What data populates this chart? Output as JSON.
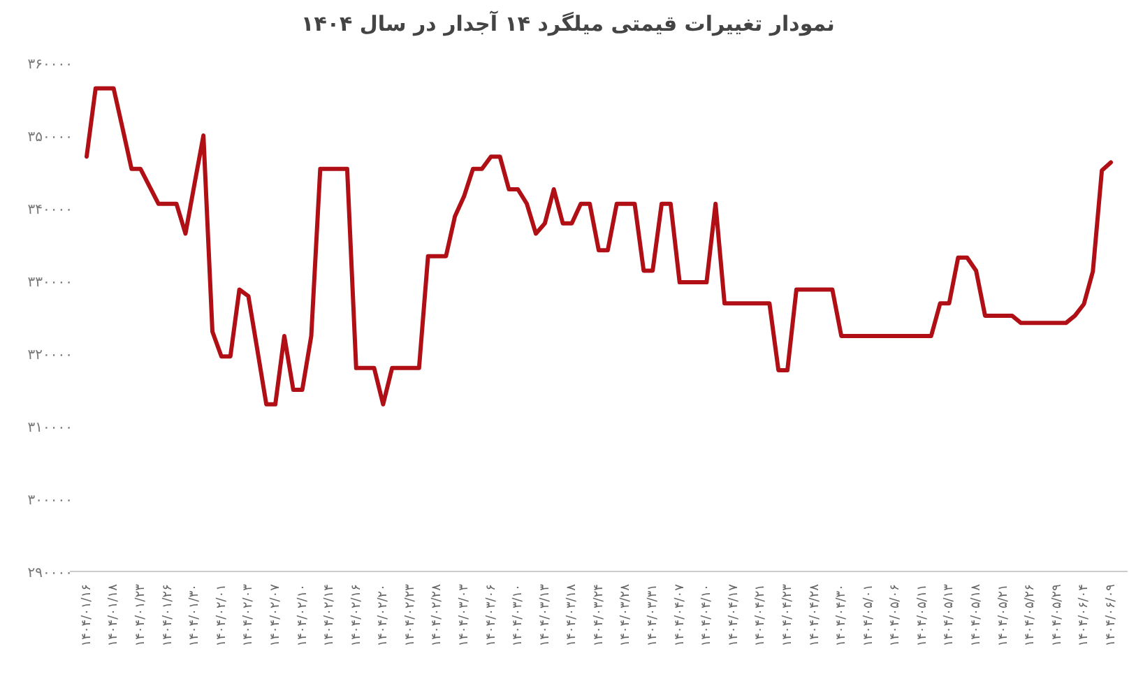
{
  "chart_data": {
    "type": "line",
    "title": "نمودار تغییرات قیمتی میلگرد ۱۴ آجدار در سال ۱۴۰۴",
    "categories": [
      "۱۴۰۴/۰۱/۱۶",
      null,
      null,
      "۱۴۰۴/۰۱/۱۸",
      null,
      null,
      "۱۴۰۴/۰۱/۲۳",
      null,
      null,
      "۱۴۰۴/۰۱/۲۶",
      null,
      null,
      "۱۴۰۴/۰۱/۳۰",
      null,
      null,
      "۱۴۰۴/۰۲/۰۱",
      null,
      null,
      "۱۴۰۴/۰۲/۰۳",
      null,
      null,
      "۱۴۰۴/۰۲/۰۷",
      null,
      null,
      "۱۴۰۴/۰۲/۱۰",
      null,
      null,
      "۱۴۰۴/۰۲/۱۴",
      null,
      null,
      "۱۴۰۴/۰۲/۱۶",
      null,
      null,
      "۱۴۰۴/۰۲/۲۰",
      null,
      null,
      "۱۴۰۴/۰۲/۲۳",
      null,
      null,
      "۱۴۰۴/۰۲/۲۸",
      null,
      null,
      "۱۴۰۴/۰۳/۰۳",
      null,
      null,
      "۱۴۰۴/۰۳/۰۶",
      null,
      null,
      "۱۴۰۴/۰۳/۱۰",
      null,
      null,
      "۱۴۰۴/۰۳/۱۳",
      null,
      null,
      "۱۴۰۴/۰۳/۱۸",
      null,
      null,
      "۱۴۰۴/۰۳/۲۴",
      null,
      null,
      "۱۴۰۴/۰۳/۲۸",
      null,
      null,
      "۱۴۰۴/۰۳/۳۱",
      null,
      null,
      "۱۴۰۴/۰۴/۰۷",
      null,
      null,
      "۱۴۰۴/۰۴/۱۰",
      null,
      null,
      "۱۴۰۴/۰۴/۱۷",
      null,
      null,
      "۱۴۰۴/۰۴/۲۱",
      null,
      null,
      "۱۴۰۴/۰۴/۲۳",
      null,
      null,
      "۱۴۰۴/۰۴/۲۸",
      null,
      null,
      "۱۴۰۴/۰۴/۳۰",
      null,
      null,
      "۱۴۰۴/۰۵/۰۱",
      null,
      null,
      "۱۴۰۴/۰۵/۰۶",
      null,
      null,
      "۱۴۰۴/۰۵/۱۱",
      null,
      null,
      "۱۴۰۴/۰۵/۱۳",
      null,
      null,
      "۱۴۰۴/۰۵/۱۸",
      null,
      null,
      "۱۴۰۴/۰۵/۲۱",
      null,
      null,
      "۱۴۰۴/۰۵/۲۶",
      null,
      null,
      "۱۴۰۴/۰۵/۲۹",
      null,
      null,
      "۱۴۰۴/۰۶/۰۴",
      null,
      null,
      "۱۴۰۴/۰۶/۰۹"
    ],
    "series": [
      {
        "color": "#b01015",
        "values": [
          347100,
          356500,
          356500,
          356500,
          351000,
          345400,
          345400,
          343000,
          340600,
          340600,
          340600,
          336500,
          343300,
          350000,
          323000,
          319600,
          319600,
          328800,
          327900,
          320500,
          313000,
          313000,
          322400,
          315000,
          315000,
          322400,
          345400,
          345400,
          345400,
          345400,
          318000,
          318000,
          318000,
          313000,
          318000,
          318000,
          318000,
          318000,
          333400,
          333400,
          333400,
          338900,
          341600,
          345400,
          345400,
          347100,
          347100,
          342600,
          342600,
          340600,
          336500,
          337900,
          342600,
          337900,
          337900,
          340600,
          340600,
          334200,
          334200,
          340600,
          340600,
          340600,
          331400,
          331400,
          340600,
          340600,
          329800,
          329800,
          329800,
          329800,
          340600,
          326900,
          326900,
          326900,
          326900,
          326900,
          326900,
          317700,
          317700,
          328800,
          328800,
          328800,
          328800,
          328800,
          322400,
          322400,
          322400,
          322400,
          322400,
          322400,
          322400,
          322400,
          322400,
          322400,
          322400,
          326900,
          326900,
          333200,
          333200,
          331400,
          325200,
          325200,
          325200,
          325200,
          324200,
          324200,
          324200,
          324200,
          324200,
          324200,
          325200,
          326800,
          331300,
          345200,
          346300
        ]
      }
    ],
    "ylim": [
      290000,
      360000
    ],
    "yticks": [
      {
        "value": 290000,
        "label": "۲۹۰۰۰۰"
      },
      {
        "value": 300000,
        "label": "۳۰۰۰۰۰"
      },
      {
        "value": 310000,
        "label": "۳۱۰۰۰۰"
      },
      {
        "value": 320000,
        "label": "۳۲۰۰۰۰"
      },
      {
        "value": 330000,
        "label": "۳۳۰۰۰۰"
      },
      {
        "value": 340000,
        "label": "۳۴۰۰۰۰"
      },
      {
        "value": 350000,
        "label": "۳۵۰۰۰۰"
      },
      {
        "value": 360000,
        "label": "۳۶۰۰۰۰"
      }
    ],
    "grid": false,
    "marker": "none",
    "line_style": "solid"
  }
}
